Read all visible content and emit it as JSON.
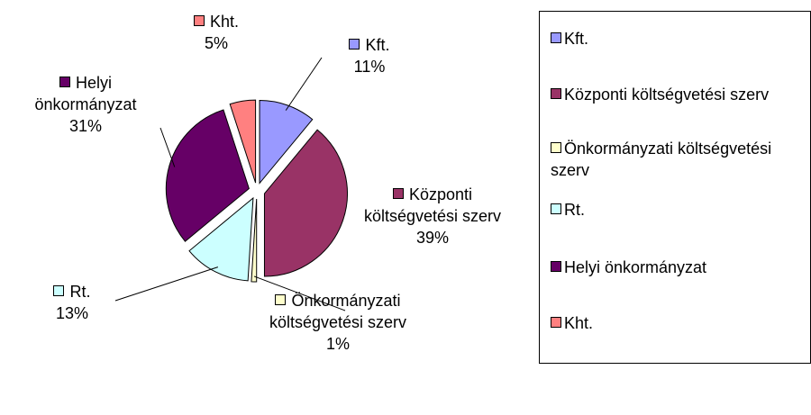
{
  "chart_data": {
    "type": "pie",
    "categories": [
      "Kft.",
      "Központi költségvetési szerv",
      "Önkormányzati költségvetési szerv",
      "Rt.",
      "Helyi önkormányzat",
      "Kht."
    ],
    "values": [
      11,
      39,
      1,
      13,
      31,
      5
    ],
    "value_labels": [
      "11%",
      "39%",
      "1%",
      "13%",
      "31%",
      "5%"
    ],
    "colors": [
      "#9999ff",
      "#993366",
      "#ffffcc",
      "#ccffff",
      "#660066",
      "#ff8080"
    ],
    "legend": "right"
  }
}
